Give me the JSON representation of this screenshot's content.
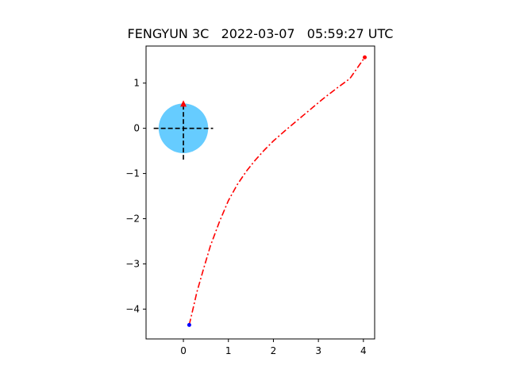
{
  "chart_data": {
    "type": "line",
    "title": "FENGYUN 3C   2022-03-07   05:59:27 UTC",
    "xlabel": "",
    "ylabel": "",
    "xlim": [
      -0.83,
      4.25
    ],
    "ylim": [
      -4.66,
      1.82
    ],
    "xticks": [
      0,
      1,
      2,
      3,
      4
    ],
    "xtick_labels": [
      "0",
      "1",
      "2",
      "3",
      "4"
    ],
    "yticks": [
      1,
      0,
      -1,
      -2,
      -3,
      -4
    ],
    "ytick_labels": [
      "1",
      "0",
      "−1",
      "−2",
      "−3",
      "−4"
    ],
    "grid": false,
    "series": [
      {
        "style": "dash-dot",
        "color": "#ff0000",
        "x": [
          0.13,
          0.2,
          0.3,
          0.45,
          0.6,
          0.8,
          1.0,
          1.2,
          1.4,
          1.6,
          1.8,
          2.0,
          2.25,
          2.5,
          2.8,
          3.1,
          3.4,
          3.7,
          4.03
        ],
        "y": [
          -4.35,
          -4.05,
          -3.62,
          -3.1,
          -2.6,
          -2.07,
          -1.6,
          -1.24,
          -0.95,
          -0.7,
          -0.48,
          -0.28,
          -0.06,
          0.15,
          0.4,
          0.65,
          0.88,
          1.1,
          1.57
        ]
      }
    ],
    "markers": [
      {
        "name": "start-point",
        "x": 0.13,
        "y": -4.35,
        "color": "#0000ff"
      },
      {
        "name": "end-point",
        "x": 4.03,
        "y": 1.57,
        "color": "#ff0000"
      }
    ],
    "earth": {
      "center": [
        0,
        0
      ],
      "radius": 0.55,
      "color": "#66ccff",
      "crosshair_color": "#000000",
      "pole_marker_color": "#ff0000"
    }
  }
}
